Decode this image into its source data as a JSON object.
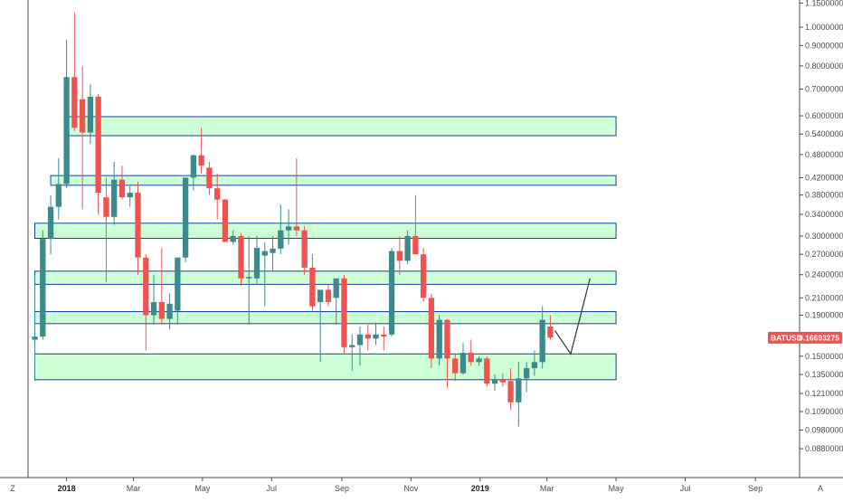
{
  "chart_data": {
    "type": "candlestick",
    "symbol": "BATUSD",
    "last_price_label": "0.16693275",
    "colors": {
      "up": "#3b8a8c",
      "down": "#ef5350",
      "zone_fill": "#ccffd6",
      "zone_border": "#1a3fa0",
      "axis_line": "#4a4a4a",
      "badge_bg": "#ef5350",
      "badge_text": "#ffffff",
      "projection": "#333333"
    },
    "y_axis": {
      "scale": "log",
      "range": [
        0.0745,
        1.17
      ],
      "ticks": [
        1.15,
        1.0,
        0.9,
        0.8,
        0.7,
        0.6,
        0.54,
        0.48,
        0.42,
        0.38,
        0.34,
        0.3,
        0.27,
        0.24,
        0.21,
        0.19,
        0.15,
        0.135,
        0.121,
        0.109,
        0.098,
        0.088
      ],
      "tick_labels": [
        "1.15000000",
        "1.00000000",
        "0.90000000",
        "0.80000000",
        "0.70000000",
        "0.60000000",
        "0.54000000",
        "0.48000000",
        "0.42000000",
        "0.38000000",
        "0.34000000",
        "0.30000000",
        "0.27000000",
        "0.24000000",
        "0.21000000",
        "0.19000000",
        "0.15000000",
        "0.13500000",
        "0.12100000",
        "0.10900000",
        "0.09800000",
        "0.08800000"
      ]
    },
    "x_axis": {
      "labels": [
        {
          "text": "2018",
          "date": "2018-01-01",
          "bold": true
        },
        {
          "text": "Mar",
          "date": "2018-03-01",
          "bold": false
        },
        {
          "text": "May",
          "date": "2018-05-01",
          "bold": false
        },
        {
          "text": "Jul",
          "date": "2018-07-01",
          "bold": false
        },
        {
          "text": "Sep",
          "date": "2018-09-01",
          "bold": false
        },
        {
          "text": "Nov",
          "date": "2018-11-01",
          "bold": false
        },
        {
          "text": "2019",
          "date": "2019-01-01",
          "bold": true
        },
        {
          "text": "Mar",
          "date": "2019-03-01",
          "bold": false
        },
        {
          "text": "May",
          "date": "2019-05-01",
          "bold": false
        },
        {
          "text": "Jul",
          "date": "2019-07-01",
          "bold": false
        },
        {
          "text": "Sep",
          "date": "2019-09-01",
          "bold": false
        }
      ],
      "range": [
        "2017-11-28",
        "2019-10-10"
      ]
    },
    "corner_labels": {
      "left": "Z",
      "right": "A"
    },
    "candles": [
      {
        "date": "2017-12-04",
        "o": 0.165,
        "h": 0.24,
        "l": 0.13,
        "c": 0.168
      },
      {
        "date": "2017-12-11",
        "o": 0.168,
        "h": 0.31,
        "l": 0.165,
        "c": 0.295
      },
      {
        "date": "2017-12-18",
        "o": 0.295,
        "h": 0.38,
        "l": 0.27,
        "c": 0.355
      },
      {
        "date": "2017-12-25",
        "o": 0.355,
        "h": 0.47,
        "l": 0.33,
        "c": 0.405
      },
      {
        "date": "2018-01-01",
        "o": 0.405,
        "h": 0.93,
        "l": 0.395,
        "c": 0.75
      },
      {
        "date": "2018-01-08",
        "o": 0.75,
        "h": 1.09,
        "l": 0.55,
        "c": 0.56
      },
      {
        "date": "2018-01-15",
        "o": 0.66,
        "h": 0.8,
        "l": 0.35,
        "c": 0.545
      },
      {
        "date": "2018-01-22",
        "o": 0.545,
        "h": 0.72,
        "l": 0.51,
        "c": 0.67
      },
      {
        "date": "2018-01-29",
        "o": 0.67,
        "h": 0.68,
        "l": 0.34,
        "c": 0.385
      },
      {
        "date": "2018-02-05",
        "o": 0.375,
        "h": 0.42,
        "l": 0.23,
        "c": 0.335
      },
      {
        "date": "2018-02-12",
        "o": 0.335,
        "h": 0.46,
        "l": 0.32,
        "c": 0.415
      },
      {
        "date": "2018-02-19",
        "o": 0.415,
        "h": 0.45,
        "l": 0.37,
        "c": 0.375
      },
      {
        "date": "2018-02-26",
        "o": 0.375,
        "h": 0.4,
        "l": 0.355,
        "c": 0.385
      },
      {
        "date": "2018-03-05",
        "o": 0.385,
        "h": 0.41,
        "l": 0.24,
        "c": 0.265
      },
      {
        "date": "2018-03-12",
        "o": 0.265,
        "h": 0.27,
        "l": 0.155,
        "c": 0.19
      },
      {
        "date": "2018-03-19",
        "o": 0.19,
        "h": 0.24,
        "l": 0.18,
        "c": 0.205
      },
      {
        "date": "2018-03-26",
        "o": 0.205,
        "h": 0.28,
        "l": 0.18,
        "c": 0.186
      },
      {
        "date": "2018-04-02",
        "o": 0.186,
        "h": 0.215,
        "l": 0.175,
        "c": 0.203
      },
      {
        "date": "2018-04-09",
        "o": 0.195,
        "h": 0.265,
        "l": 0.18,
        "c": 0.265
      },
      {
        "date": "2018-04-16",
        "o": 0.265,
        "h": 0.42,
        "l": 0.258,
        "c": 0.42
      },
      {
        "date": "2018-04-23",
        "o": 0.42,
        "h": 0.48,
        "l": 0.39,
        "c": 0.478
      },
      {
        "date": "2018-04-30",
        "o": 0.478,
        "h": 0.56,
        "l": 0.43,
        "c": 0.45
      },
      {
        "date": "2018-05-07",
        "o": 0.445,
        "h": 0.46,
        "l": 0.38,
        "c": 0.395
      },
      {
        "date": "2018-05-14",
        "o": 0.395,
        "h": 0.43,
        "l": 0.33,
        "c": 0.37
      },
      {
        "date": "2018-05-21",
        "o": 0.37,
        "h": 0.372,
        "l": 0.29,
        "c": 0.29
      },
      {
        "date": "2018-05-28",
        "o": 0.29,
        "h": 0.31,
        "l": 0.285,
        "c": 0.3
      },
      {
        "date": "2018-06-04",
        "o": 0.3,
        "h": 0.305,
        "l": 0.225,
        "c": 0.235
      },
      {
        "date": "2018-06-11",
        "o": 0.235,
        "h": 0.3,
        "l": 0.18,
        "c": 0.237
      },
      {
        "date": "2018-06-18",
        "o": 0.235,
        "h": 0.3,
        "l": 0.228,
        "c": 0.28
      },
      {
        "date": "2018-06-25",
        "o": 0.268,
        "h": 0.29,
        "l": 0.2,
        "c": 0.275
      },
      {
        "date": "2018-07-02",
        "o": 0.272,
        "h": 0.3,
        "l": 0.245,
        "c": 0.279
      },
      {
        "date": "2018-07-09",
        "o": 0.279,
        "h": 0.36,
        "l": 0.27,
        "c": 0.31
      },
      {
        "date": "2018-07-16",
        "o": 0.31,
        "h": 0.35,
        "l": 0.285,
        "c": 0.317
      },
      {
        "date": "2018-07-23",
        "o": 0.317,
        "h": 0.47,
        "l": 0.3,
        "c": 0.31
      },
      {
        "date": "2018-07-30",
        "o": 0.31,
        "h": 0.318,
        "l": 0.24,
        "c": 0.25
      },
      {
        "date": "2018-08-06",
        "o": 0.25,
        "h": 0.27,
        "l": 0.195,
        "c": 0.2
      },
      {
        "date": "2018-08-13",
        "o": 0.205,
        "h": 0.22,
        "l": 0.145,
        "c": 0.22
      },
      {
        "date": "2018-08-20",
        "o": 0.22,
        "h": 0.227,
        "l": 0.2,
        "c": 0.205
      },
      {
        "date": "2018-08-27",
        "o": 0.21,
        "h": 0.235,
        "l": 0.18,
        "c": 0.235
      },
      {
        "date": "2018-09-03",
        "o": 0.235,
        "h": 0.24,
        "l": 0.152,
        "c": 0.158
      },
      {
        "date": "2018-09-10",
        "o": 0.158,
        "h": 0.17,
        "l": 0.138,
        "c": 0.16
      },
      {
        "date": "2018-09-17",
        "o": 0.16,
        "h": 0.178,
        "l": 0.142,
        "c": 0.17
      },
      {
        "date": "2018-09-24",
        "o": 0.17,
        "h": 0.18,
        "l": 0.155,
        "c": 0.166
      },
      {
        "date": "2018-10-01",
        "o": 0.166,
        "h": 0.182,
        "l": 0.16,
        "c": 0.17
      },
      {
        "date": "2018-10-08",
        "o": 0.17,
        "h": 0.178,
        "l": 0.155,
        "c": 0.168
      },
      {
        "date": "2018-10-15",
        "o": 0.17,
        "h": 0.28,
        "l": 0.168,
        "c": 0.275
      },
      {
        "date": "2018-10-22",
        "o": 0.275,
        "h": 0.3,
        "l": 0.24,
        "c": 0.26
      },
      {
        "date": "2018-10-29",
        "o": 0.26,
        "h": 0.31,
        "l": 0.255,
        "c": 0.3
      },
      {
        "date": "2018-11-05",
        "o": 0.3,
        "h": 0.38,
        "l": 0.27,
        "c": 0.27
      },
      {
        "date": "2018-11-12",
        "o": 0.27,
        "h": 0.28,
        "l": 0.205,
        "c": 0.21
      },
      {
        "date": "2018-11-19",
        "o": 0.21,
        "h": 0.215,
        "l": 0.14,
        "c": 0.148
      },
      {
        "date": "2018-11-26",
        "o": 0.148,
        "h": 0.19,
        "l": 0.142,
        "c": 0.185
      },
      {
        "date": "2018-12-03",
        "o": 0.185,
        "h": 0.186,
        "l": 0.125,
        "c": 0.148
      },
      {
        "date": "2018-12-10",
        "o": 0.148,
        "h": 0.152,
        "l": 0.13,
        "c": 0.136
      },
      {
        "date": "2018-12-17",
        "o": 0.136,
        "h": 0.162,
        "l": 0.135,
        "c": 0.153
      },
      {
        "date": "2018-12-24",
        "o": 0.153,
        "h": 0.165,
        "l": 0.142,
        "c": 0.145
      },
      {
        "date": "2018-12-31",
        "o": 0.145,
        "h": 0.15,
        "l": 0.142,
        "c": 0.148
      },
      {
        "date": "2019-01-07",
        "o": 0.148,
        "h": 0.15,
        "l": 0.126,
        "c": 0.128
      },
      {
        "date": "2019-01-14",
        "o": 0.128,
        "h": 0.135,
        "l": 0.123,
        "c": 0.131
      },
      {
        "date": "2019-01-21",
        "o": 0.131,
        "h": 0.136,
        "l": 0.126,
        "c": 0.129
      },
      {
        "date": "2019-01-28",
        "o": 0.13,
        "h": 0.14,
        "l": 0.11,
        "c": 0.115
      },
      {
        "date": "2019-02-04",
        "o": 0.115,
        "h": 0.145,
        "l": 0.1,
        "c": 0.132
      },
      {
        "date": "2019-02-11",
        "o": 0.132,
        "h": 0.145,
        "l": 0.122,
        "c": 0.14
      },
      {
        "date": "2019-02-18",
        "o": 0.14,
        "h": 0.155,
        "l": 0.134,
        "c": 0.145
      },
      {
        "date": "2019-02-25",
        "o": 0.145,
        "h": 0.2,
        "l": 0.14,
        "c": 0.185
      },
      {
        "date": "2019-03-04",
        "o": 0.178,
        "h": 0.19,
        "l": 0.165,
        "c": 0.167
      }
    ],
    "zones": [
      {
        "low": 0.535,
        "high": 0.597,
        "start": "2018-01-01",
        "end": "2019-05-01"
      },
      {
        "low": 0.402,
        "high": 0.425,
        "start": "2017-12-18",
        "end": "2019-05-01"
      },
      {
        "low": 0.296,
        "high": 0.323,
        "start": "2017-12-04",
        "end": "2019-05-01"
      },
      {
        "low": 0.227,
        "high": 0.245,
        "start": "2017-12-04",
        "end": "2019-05-01"
      },
      {
        "low": 0.181,
        "high": 0.194,
        "start": "2017-12-04",
        "end": "2019-05-01"
      },
      {
        "low": 0.131,
        "high": 0.152,
        "start": "2017-12-04",
        "end": "2019-05-01"
      }
    ],
    "projection": [
      {
        "date": "2019-03-08",
        "price": 0.174
      },
      {
        "date": "2019-03-22",
        "price": 0.152
      },
      {
        "date": "2019-04-08",
        "price": 0.235
      }
    ]
  }
}
